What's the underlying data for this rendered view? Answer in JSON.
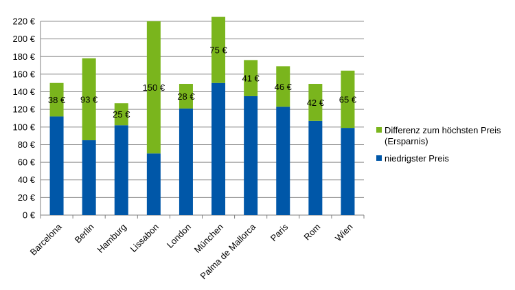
{
  "chart_data": {
    "type": "bar",
    "stacked": true,
    "title": "",
    "xlabel": "",
    "ylabel": "",
    "ylim": [
      0,
      220
    ],
    "y_step": 20,
    "y_unit_suffix": " €",
    "grid": true,
    "legend_position": "right",
    "categories": [
      "Barcelona",
      "Berlin",
      "Hamburg",
      "Lissabon",
      "London",
      "München",
      "Palma de Mallorca",
      "Paris",
      "Rom",
      "Wien"
    ],
    "series": [
      {
        "name": "niedrigster Preis",
        "color": "#0057A8",
        "values": [
          112,
          85,
          102,
          70,
          121,
          150,
          135,
          123,
          107,
          99
        ]
      },
      {
        "name": "Differenz zum höchsten Preis (Ersparnis)",
        "color": "#7AB51D",
        "values": [
          38,
          93,
          25,
          150,
          28,
          75,
          41,
          46,
          42,
          65
        ]
      }
    ],
    "data_labels": [
      "38 €",
      "93 €",
      "25 €",
      "150 €",
      "28 €",
      "75 €",
      "41 €",
      "46 €",
      "42 €",
      "65 €"
    ],
    "legend": {
      "items": [
        {
          "lines": [
            "Differenz zum höchsten Preis",
            "(Ersparnis)"
          ],
          "color": "#7AB51D"
        },
        {
          "lines": [
            "niedrigster Preis"
          ],
          "color": "#0057A8"
        }
      ]
    }
  }
}
